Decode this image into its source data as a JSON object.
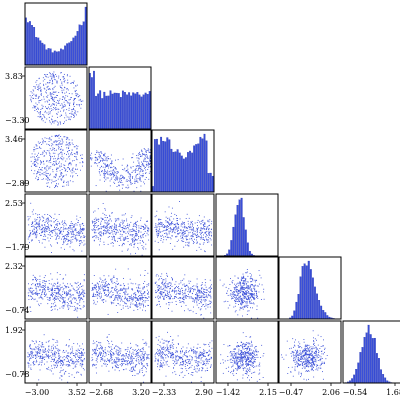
{
  "chart_data": {
    "type": "scatter",
    "subtype": "corner-plot",
    "title": "",
    "n_vars": 6,
    "color": "#3a4fd8",
    "variables": [
      {
        "ticks": [
          "−3.00",
          "3.52"
        ],
        "range": [
          -3.8,
          4.5
        ]
      },
      {
        "ticks": [
          "−3.30",
          "3.83"
        ],
        "range": [
          -4.0,
          4.6
        ],
        "tick_x": [
          "−2.68",
          "3.20"
        ],
        "range_x": [
          -3.5,
          4.0
        ]
      },
      {
        "ticks": [
          "−2.89",
          "3.46"
        ],
        "range": [
          -3.6,
          4.2
        ],
        "tick_x": [
          "−2.33",
          "2.90"
        ],
        "range_x": [
          -3.0,
          3.6
        ]
      },
      {
        "ticks": [
          "−1.79",
          "2.53"
        ],
        "range": [
          -2.4,
          3.0
        ],
        "tick_x": [
          "−1.42",
          "2.15"
        ],
        "range_x": [
          -2.0,
          2.6
        ]
      },
      {
        "ticks": [
          "−0.74",
          "2.32"
        ],
        "range": [
          -1.3,
          2.8
        ],
        "tick_x": [
          "−0.47",
          "2.06"
        ],
        "range_x": [
          -1.0,
          2.4
        ]
      },
      {
        "ticks": [
          "−0.78",
          "1.92"
        ],
        "range": [
          -1.2,
          2.3
        ],
        "tick_x": [
          "−0.54",
          "1.68"
        ],
        "range_x": [
          -1.0,
          2.1
        ]
      }
    ],
    "histograms": [
      {
        "var": 1,
        "shape": "u-shaped"
      },
      {
        "var": 2,
        "shape": "flat"
      },
      {
        "var": 3,
        "shape": "broad"
      },
      {
        "var": 4,
        "shape": "narrow-peak"
      },
      {
        "var": 5,
        "shape": "right-skewed-peak"
      },
      {
        "var": 6,
        "shape": "bell"
      }
    ],
    "scatter_panels": [
      {
        "x": 1,
        "y": 2,
        "shape": "circle"
      },
      {
        "x": 1,
        "y": 3,
        "shape": "circle"
      },
      {
        "x": 2,
        "y": 3,
        "shape": "crescent"
      },
      {
        "x": 1,
        "y": 4,
        "shape": "band"
      },
      {
        "x": 2,
        "y": 4,
        "shape": "band"
      },
      {
        "x": 3,
        "y": 4,
        "shape": "band"
      },
      {
        "x": 1,
        "y": 5,
        "shape": "band"
      },
      {
        "x": 2,
        "y": 5,
        "shape": "band"
      },
      {
        "x": 3,
        "y": 5,
        "shape": "band"
      },
      {
        "x": 4,
        "y": 5,
        "shape": "blob"
      },
      {
        "x": 1,
        "y": 6,
        "shape": "band"
      },
      {
        "x": 2,
        "y": 6,
        "shape": "band"
      },
      {
        "x": 3,
        "y": 6,
        "shape": "band"
      },
      {
        "x": 4,
        "y": 6,
        "shape": "blob"
      },
      {
        "x": 5,
        "y": 6,
        "shape": "blob"
      }
    ]
  }
}
